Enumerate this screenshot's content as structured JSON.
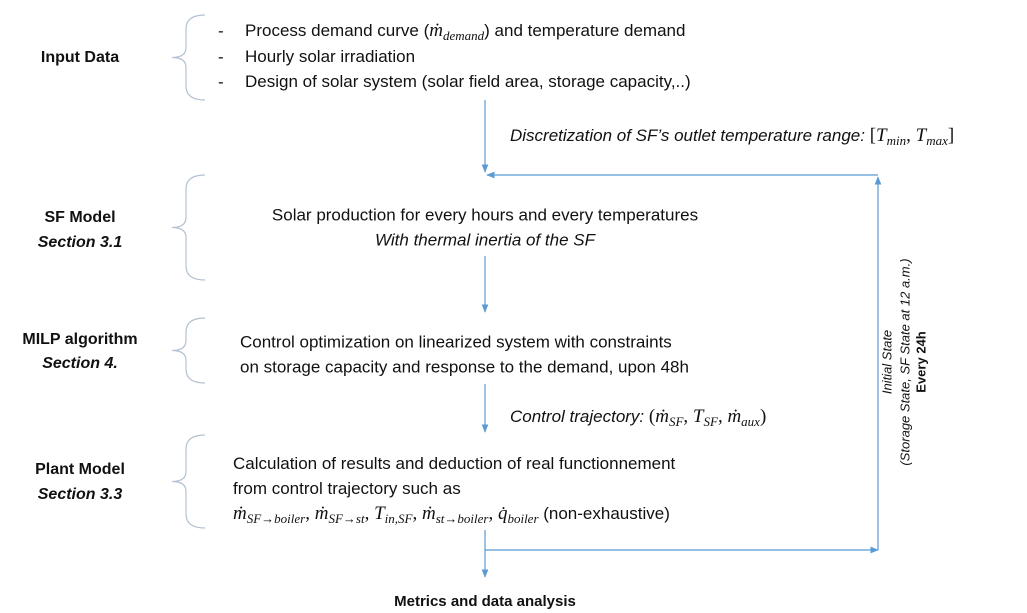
{
  "bullet": "-",
  "input": {
    "label": "Input Data",
    "items": [
      [
        {
          "t": "Process demand curve ("
        },
        {
          "m": "ṁ",
          "s": "demand"
        },
        {
          "t": ") and temperature demand"
        }
      ],
      [
        {
          "t": "Hourly solar irradiation"
        }
      ],
      [
        {
          "t": "Design of solar system (solar field area, storage capacity,..)"
        }
      ]
    ]
  },
  "discretization": [
    {
      "t": "Discretization of SF’s outlet temperature range: "
    },
    {
      "u": "["
    },
    {
      "m": "T",
      "s": "min"
    },
    {
      "u": ", "
    },
    {
      "m": "T",
      "s": "max"
    },
    {
      "u": "]"
    }
  ],
  "sf_model": {
    "label": "SF Model",
    "section": "Section 3.1",
    "lines": [
      "Solar production for every hours and every temperatures",
      "With thermal inertia of the SF"
    ]
  },
  "milp": {
    "label": "MILP algorithm",
    "section": "Section 4.",
    "lines": [
      "Control optimization on linearized system with constraints",
      "on storage capacity and response to the demand, upon 48h"
    ]
  },
  "control_trajectory": [
    {
      "t": "Control trajectory: "
    },
    {
      "u": "("
    },
    {
      "m": "ṁ",
      "s": "SF"
    },
    {
      "u": ", "
    },
    {
      "m": "T",
      "s": "SF"
    },
    {
      "u": ", "
    },
    {
      "m": "ṁ",
      "s": "aux"
    },
    {
      "u": ")"
    }
  ],
  "plant_model": {
    "label": "Plant Model",
    "section": "Section 3.3",
    "lines": [
      [
        {
          "t": "Calculation of results and deduction of real functionnement"
        }
      ],
      [
        {
          "t": "from control trajectory such as"
        }
      ],
      [
        {
          "m": "ṁ",
          "s": "SF→boiler"
        },
        {
          "u": ", "
        },
        {
          "m": "ṁ",
          "s": "SF→st"
        },
        {
          "u": ", "
        },
        {
          "m": "T",
          "s": "in,SF"
        },
        {
          "u": ", "
        },
        {
          "m": "ṁ",
          "s": "st→boiler"
        },
        {
          "u": ", "
        },
        {
          "m": "q̇",
          "s": "boiler"
        },
        {
          "t": " (non-exhaustive)"
        }
      ]
    ]
  },
  "feedback": {
    "state": "Initial State",
    "detail": "(Storage State, SF State at 12 a.m.)",
    "period": "Every 24h"
  },
  "output": "Metrics and data analysis"
}
